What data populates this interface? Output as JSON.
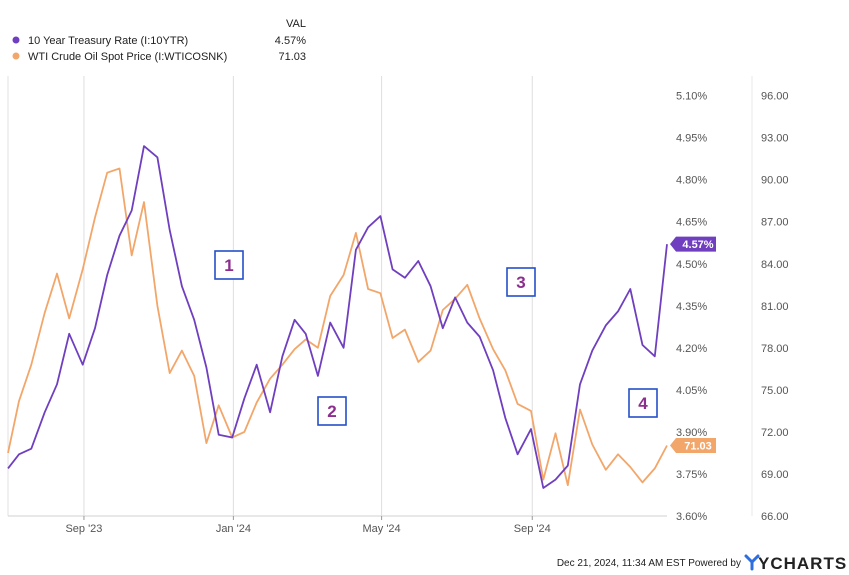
{
  "legend": {
    "header": "VAL",
    "items": [
      {
        "label": "10 Year Treasury Rate (I:10YTR)",
        "value": "4.57%"
      },
      {
        "label": "WTI Crude Oil Spot Price (I:WTICOSNK)",
        "value": "71.03"
      }
    ]
  },
  "footer": {
    "timestamp": "Dec 21, 2024, 11:34 AM EST Powered by",
    "brand": "YCHARTS"
  },
  "colors": {
    "treasury": "#6f3fbf",
    "oil": "#f2a66a",
    "annotation_border": "#2450c8",
    "annotation_text": "#8b2e8e",
    "grid": "#dedede"
  },
  "icons": {
    "brand_logo": "ycharts-y-logo-icon"
  },
  "chart_data": {
    "type": "line",
    "title": "",
    "x_ticks": [
      "Sep '23",
      "Jan '24",
      "May '24",
      "Sep '24"
    ],
    "x_tick_dates": [
      "2023-09-01",
      "2024-01-01",
      "2024-05-01",
      "2024-09-01"
    ],
    "x_range": [
      "2023-07-01",
      "2024-12-20"
    ],
    "left_axis": {
      "series": "10 Year Treasury Rate (I:10YTR)",
      "range": [
        3.6,
        5.17
      ],
      "ticks": [
        "3.60%",
        "3.75%",
        "3.90%",
        "4.05%",
        "4.20%",
        "4.35%",
        "4.50%",
        "4.65%",
        "4.80%",
        "4.95%",
        "5.10%"
      ],
      "tick_values": [
        3.6,
        3.75,
        3.9,
        4.05,
        4.2,
        4.35,
        4.5,
        4.65,
        4.8,
        4.95,
        5.1
      ]
    },
    "right_axis": {
      "series": "WTI Crude Oil Spot Price (I:WTICOSNK)",
      "range": [
        66.0,
        97.4
      ],
      "ticks": [
        "66.00",
        "69.00",
        "72.00",
        "75.00",
        "78.00",
        "81.00",
        "84.00",
        "87.00",
        "90.00",
        "93.00",
        "96.00"
      ],
      "tick_values": [
        66,
        69,
        72,
        75,
        78,
        81,
        84,
        87,
        90,
        93,
        96
      ]
    },
    "grid": "vertical lines at x ticks",
    "series": [
      {
        "name": "10 Year Treasury Rate (I:10YTR)",
        "axis": "left",
        "last_label": "4.57%",
        "x": [
          "2023-07-01",
          "2023-07-10",
          "2023-07-20",
          "2023-07-31",
          "2023-08-10",
          "2023-08-20",
          "2023-08-31",
          "2023-09-10",
          "2023-09-20",
          "2023-09-30",
          "2023-10-10",
          "2023-10-20",
          "2023-10-31",
          "2023-11-10",
          "2023-11-20",
          "2023-11-30",
          "2023-12-10",
          "2023-12-20",
          "2023-12-31",
          "2024-01-10",
          "2024-01-20",
          "2024-01-31",
          "2024-02-10",
          "2024-02-20",
          "2024-02-29",
          "2024-03-10",
          "2024-03-20",
          "2024-03-31",
          "2024-04-10",
          "2024-04-20",
          "2024-04-30",
          "2024-05-10",
          "2024-05-20",
          "2024-05-31",
          "2024-06-10",
          "2024-06-20",
          "2024-06-30",
          "2024-07-10",
          "2024-07-20",
          "2024-07-31",
          "2024-08-10",
          "2024-08-20",
          "2024-08-31",
          "2024-09-10",
          "2024-09-20",
          "2024-09-30",
          "2024-10-10",
          "2024-10-20",
          "2024-10-31",
          "2024-11-10",
          "2024-11-20",
          "2024-11-30",
          "2024-12-10",
          "2024-12-20"
        ],
        "values": [
          3.77,
          3.82,
          3.84,
          3.97,
          4.07,
          4.25,
          4.14,
          4.27,
          4.46,
          4.6,
          4.69,
          4.92,
          4.88,
          4.62,
          4.42,
          4.3,
          4.13,
          3.89,
          3.88,
          4.02,
          4.14,
          3.97,
          4.17,
          4.3,
          4.25,
          4.1,
          4.29,
          4.2,
          4.55,
          4.63,
          4.67,
          4.48,
          4.45,
          4.51,
          4.42,
          4.27,
          4.38,
          4.29,
          4.24,
          4.12,
          3.95,
          3.82,
          3.91,
          3.7,
          3.73,
          3.78,
          4.07,
          4.19,
          4.28,
          4.33,
          4.41,
          4.21,
          4.17,
          4.57
        ]
      },
      {
        "name": "WTI Crude Oil Spot Price (I:WTICOSNK)",
        "axis": "right",
        "last_label": "71.03",
        "x": [
          "2023-07-01",
          "2023-07-10",
          "2023-07-20",
          "2023-07-31",
          "2023-08-10",
          "2023-08-20",
          "2023-08-31",
          "2023-09-10",
          "2023-09-20",
          "2023-09-30",
          "2023-10-10",
          "2023-10-20",
          "2023-10-31",
          "2023-11-10",
          "2023-11-20",
          "2023-11-30",
          "2023-12-10",
          "2023-12-20",
          "2023-12-31",
          "2024-01-10",
          "2024-01-20",
          "2024-01-31",
          "2024-02-10",
          "2024-02-20",
          "2024-02-29",
          "2024-03-10",
          "2024-03-20",
          "2024-03-31",
          "2024-04-10",
          "2024-04-20",
          "2024-04-30",
          "2024-05-10",
          "2024-05-20",
          "2024-05-31",
          "2024-06-10",
          "2024-06-20",
          "2024-06-30",
          "2024-07-10",
          "2024-07-20",
          "2024-07-31",
          "2024-08-10",
          "2024-08-20",
          "2024-08-31",
          "2024-09-10",
          "2024-09-20",
          "2024-09-30",
          "2024-10-10",
          "2024-10-20",
          "2024-10-31",
          "2024-11-10",
          "2024-11-20",
          "2024-11-30",
          "2024-12-10",
          "2024-12-20"
        ],
        "values": [
          70.5,
          74.2,
          76.8,
          80.5,
          83.3,
          80.1,
          83.6,
          87.3,
          90.5,
          90.8,
          84.6,
          88.4,
          81.0,
          76.2,
          77.8,
          76.0,
          71.2,
          73.9,
          71.6,
          72.0,
          74.1,
          75.8,
          76.8,
          77.9,
          78.6,
          78.0,
          81.7,
          83.2,
          86.2,
          82.2,
          81.9,
          78.7,
          79.3,
          77.0,
          77.8,
          80.7,
          81.5,
          82.5,
          80.1,
          77.9,
          76.4,
          74.0,
          73.5,
          68.6,
          71.9,
          68.2,
          73.6,
          71.1,
          69.3,
          70.4,
          69.5,
          68.4,
          69.4,
          71.03
        ]
      }
    ],
    "annotations": [
      "1",
      "2",
      "3",
      "4"
    ]
  }
}
